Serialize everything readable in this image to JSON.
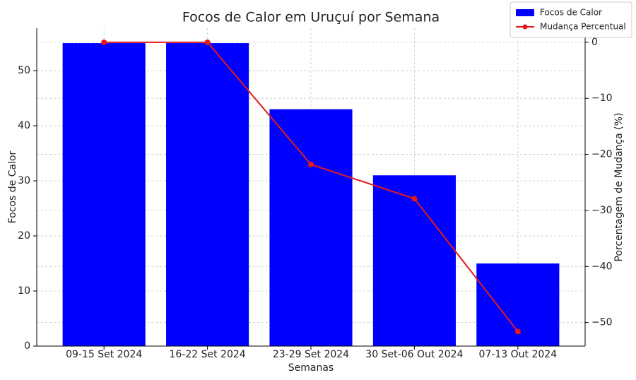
{
  "chart_data": {
    "type": "bar_line",
    "title": "Focos de Calor em Uruçuí por Semana",
    "x_label": "Semanas",
    "y_label": "Focos de Calor",
    "y2_label": "Porcentagem de Mudança (%)",
    "categories": [
      "09-15 Set 2024",
      "16-22 Set 2024",
      "23-29 Set 2024",
      "30 Set-06 Out 2024",
      "07-13 Out 2024"
    ],
    "series": [
      {
        "name": "Focos de Calor",
        "type": "bar",
        "color": "#0000ff",
        "values": [
          55,
          55,
          43,
          31,
          15
        ]
      },
      {
        "name": "Mudança Percentual",
        "type": "line",
        "color": "#e31a1c",
        "axis": "y2",
        "values": [
          0,
          0,
          -21.8,
          -27.9,
          -51.6
        ]
      }
    ],
    "ylim": [
      0,
      57.7
    ],
    "yticks": [
      0,
      10,
      20,
      30,
      40,
      50
    ],
    "y2lim": [
      -54.2,
      2.5
    ],
    "y2ticks": [
      {
        "value": -50,
        "label": "−50"
      },
      {
        "value": -40,
        "label": "−40"
      },
      {
        "value": -30,
        "label": "−30"
      },
      {
        "value": -20,
        "label": "−20"
      },
      {
        "value": -10,
        "label": "−10"
      },
      0
    ],
    "grid": true,
    "legend": "upper right"
  }
}
